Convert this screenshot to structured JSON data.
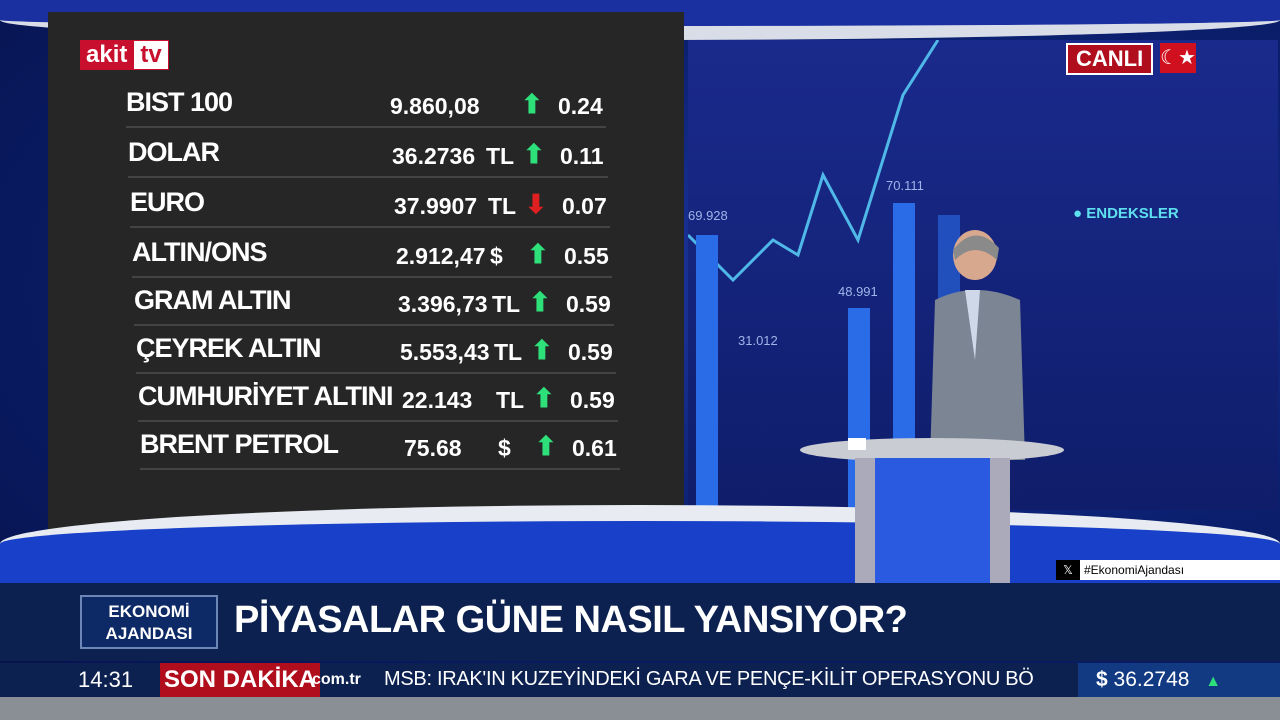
{
  "logo": {
    "part1": "akit",
    "part2": "tv"
  },
  "live_badge": "CANLI",
  "market_board": [
    {
      "name": "BIST 100",
      "value": "9.860,08",
      "currency": "",
      "direction": "up",
      "change": "0.24"
    },
    {
      "name": "DOLAR",
      "value": "36.2736",
      "currency": "TL",
      "direction": "up",
      "change": "0.11"
    },
    {
      "name": "EURO",
      "value": "37.9907",
      "currency": "TL",
      "direction": "down",
      "change": "0.07"
    },
    {
      "name": "ALTIN/ONS",
      "value": "2.912,47",
      "currency": "$",
      "direction": "up",
      "change": "0.55"
    },
    {
      "name": "GRAM ALTIN",
      "value": "3.396,73",
      "currency": "TL",
      "direction": "up",
      "change": "0.59"
    },
    {
      "name": "ÇEYREK ALTIN",
      "value": "5.553,43",
      "currency": "TL",
      "direction": "up",
      "change": "0.59"
    },
    {
      "name": "CUMHURİYET ALTINI",
      "value": "22.143",
      "currency": "TL",
      "direction": "up",
      "change": "0.59"
    },
    {
      "name": "BRENT PETROL",
      "value": "75.68",
      "currency": "$",
      "direction": "up",
      "change": "0.61"
    }
  ],
  "screen": {
    "label": "ENDEKSLER",
    "bar_labels": [
      "69.928",
      "31.012",
      "48.991",
      "70.111"
    ]
  },
  "hashtag": "#EkonomiAjandası",
  "program": {
    "line1": "EKONOMİ",
    "line2": "AJANDASI"
  },
  "headline": "PİYASALAR GÜNE NASIL YANSIYOR?",
  "ticker": {
    "time": "14:31",
    "source": "SON DAKİKA",
    "source_suffix": "com.tr",
    "news": "MSB: IRAK'IN KUZEYİNDEKİ GARA VE PENÇE-KİLİT OPERASYONU BÖ",
    "fx_symbol": "$",
    "fx_value": "36.2748",
    "fx_direction": "up"
  },
  "colors": {
    "up": "#2ee07a",
    "down": "#e02020",
    "brand_red": "#c8102e",
    "bar_blue": "#0c2150"
  }
}
